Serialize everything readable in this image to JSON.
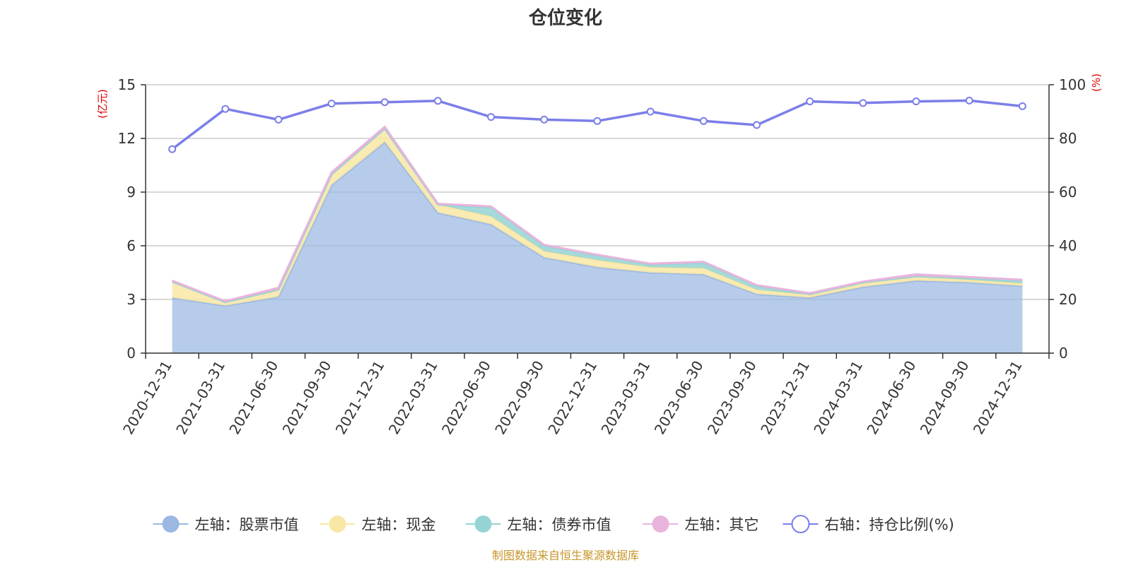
{
  "chart_data": {
    "type": "area",
    "title": "仓位变化",
    "left_unit": "(亿元)",
    "right_unit": "(%)",
    "categories": [
      "2020-12-31",
      "2021-03-31",
      "2021-06-30",
      "2021-09-30",
      "2021-12-31",
      "2022-03-31",
      "2022-06-30",
      "2022-09-30",
      "2022-12-31",
      "2023-03-31",
      "2023-06-30",
      "2023-09-30",
      "2023-12-31",
      "2024-03-31",
      "2024-06-30",
      "2024-09-30",
      "2024-12-31"
    ],
    "left_axis": {
      "min": 0,
      "max": 15,
      "ticks": [
        0,
        3,
        6,
        9,
        12,
        15
      ]
    },
    "right_axis": {
      "min": 0,
      "max": 100,
      "ticks": [
        0,
        20,
        40,
        60,
        80,
        100
      ]
    },
    "stacked_series": [
      {
        "name": "左轴：股票市值",
        "color": "#9bb8e2",
        "values": [
          3.1,
          2.65,
          3.15,
          9.4,
          11.8,
          7.85,
          7.2,
          5.35,
          4.8,
          4.5,
          4.4,
          3.3,
          3.1,
          3.7,
          4.05,
          3.95,
          3.75
        ]
      },
      {
        "name": "左轴：现金",
        "color": "#f9e7a5",
        "values": [
          0.9,
          0.2,
          0.4,
          0.6,
          0.75,
          0.45,
          0.45,
          0.35,
          0.4,
          0.3,
          0.35,
          0.25,
          0.15,
          0.2,
          0.2,
          0.15,
          0.15
        ]
      },
      {
        "name": "左轴：债券市值",
        "color": "#96d4d4",
        "values": [
          0,
          0,
          0,
          0,
          0,
          0,
          0.5,
          0.3,
          0.25,
          0.15,
          0.3,
          0.2,
          0.05,
          0.05,
          0.05,
          0.1,
          0.15
        ]
      },
      {
        "name": "左轴：其它",
        "color": "#e8b4dc",
        "values": [
          0.05,
          0.05,
          0.1,
          0.1,
          0.1,
          0.05,
          0.05,
          0.05,
          0.05,
          0.05,
          0.05,
          0.05,
          0.05,
          0.05,
          0.1,
          0.05,
          0.05
        ]
      }
    ],
    "line_series": {
      "name": "右轴：持仓比例(%)",
      "color": "#7b7fe8",
      "axis": "right",
      "values": [
        76,
        91,
        87,
        93,
        93.5,
        94,
        88,
        87,
        86.5,
        90,
        86.5,
        85,
        93.8,
        93.2,
        93.8,
        94.1,
        92
      ]
    },
    "grid": true,
    "legend_position": "bottom"
  },
  "source_note": "制图数据来自恒生聚源数据库"
}
